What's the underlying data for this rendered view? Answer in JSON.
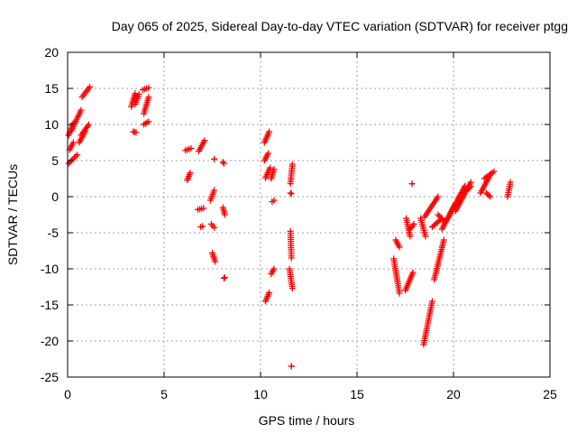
{
  "chart_data": {
    "type": "scatter",
    "title": "Day 065 of 2025, Sidereal Day-to-day VTEC variation (SDTVAR) for receiver ptgg",
    "xlabel": "GPS time / hours",
    "ylabel": "SDTVAR / TECUs",
    "xlim": [
      0,
      25
    ],
    "ylim": [
      -25,
      20
    ],
    "x_ticks": [
      "0",
      "5",
      "10",
      "15",
      "20",
      "25"
    ],
    "y_ticks": [
      "-25",
      "-20",
      "-15",
      "-10",
      "-5",
      "0",
      "5",
      "10",
      "15",
      "20"
    ],
    "grid": true,
    "marker": "plus",
    "color": "#ff0000",
    "segments": [
      [
        0.05,
        4.6,
        0.5,
        5.8
      ],
      [
        0.1,
        6.5,
        0.3,
        7.5
      ],
      [
        0.05,
        8.5,
        0.3,
        10.2
      ],
      [
        0.2,
        9.2,
        0.7,
        12.0
      ],
      [
        0.6,
        7.5,
        0.9,
        9.0
      ],
      [
        0.7,
        8.5,
        1.1,
        10.0
      ],
      [
        0.75,
        13.8,
        1.15,
        15.2
      ],
      [
        3.3,
        12.5,
        3.5,
        14.3
      ],
      [
        3.5,
        12.8,
        3.7,
        14.2
      ],
      [
        3.4,
        9.0,
        3.55,
        8.9
      ],
      [
        3.95,
        11.5,
        4.2,
        13.8
      ],
      [
        3.9,
        14.8,
        4.2,
        15.1
      ],
      [
        3.95,
        10.0,
        4.2,
        10.4
      ],
      [
        6.1,
        6.4,
        6.4,
        6.7
      ],
      [
        6.2,
        2.3,
        6.35,
        3.3
      ],
      [
        6.8,
        6.3,
        7.1,
        7.8
      ],
      [
        6.75,
        -1.8,
        7.05,
        -1.6
      ],
      [
        6.9,
        -4.2,
        7.0,
        -4.1
      ],
      [
        7.4,
        -0.5,
        7.6,
        0.9
      ],
      [
        7.45,
        -3.8,
        7.6,
        -4.3
      ],
      [
        7.5,
        -7.8,
        7.65,
        -9.0
      ],
      [
        7.6,
        5.2,
        7.6,
        5.2
      ],
      [
        8.05,
        -1.5,
        8.15,
        -2.5
      ],
      [
        8.05,
        4.8,
        8.1,
        4.6
      ],
      [
        8.1,
        -11.3,
        8.15,
        -11.2
      ],
      [
        10.2,
        7.5,
        10.45,
        9.0
      ],
      [
        10.2,
        5.0,
        10.4,
        6.0
      ],
      [
        10.25,
        2.6,
        10.5,
        4.0
      ],
      [
        10.55,
        2.5,
        10.7,
        3.8
      ],
      [
        10.25,
        -14.5,
        10.45,
        -13.3
      ],
      [
        10.55,
        -10.7,
        10.7,
        -10.0
      ],
      [
        10.6,
        -0.7,
        10.7,
        -0.5
      ],
      [
        11.5,
        -10.0,
        11.65,
        -12.7
      ],
      [
        11.55,
        -4.8,
        11.6,
        -8.5
      ],
      [
        11.55,
        0.5,
        11.6,
        0.4
      ],
      [
        11.55,
        1.8,
        11.65,
        4.5
      ],
      [
        11.6,
        -23.5,
        11.6,
        -23.5
      ],
      [
        16.9,
        -8.6,
        17.2,
        -13.4
      ],
      [
        17.0,
        -6.0,
        17.2,
        -7.0
      ],
      [
        17.5,
        -13.0,
        17.9,
        -10.5
      ],
      [
        17.55,
        -3.0,
        17.75,
        -5.5
      ],
      [
        17.75,
        -4.5,
        17.95,
        -3.8
      ],
      [
        17.85,
        1.8,
        17.85,
        1.8
      ],
      [
        18.3,
        -3.0,
        18.55,
        -5.5
      ],
      [
        18.5,
        -2.8,
        19.2,
        0.0
      ],
      [
        18.45,
        -20.5,
        18.9,
        -14.5
      ],
      [
        18.9,
        -4.2,
        19.4,
        -3.0
      ],
      [
        19.0,
        -11.5,
        19.5,
        -6.0
      ],
      [
        19.2,
        -2.5,
        19.55,
        -3.5
      ],
      [
        19.4,
        -4.5,
        20.1,
        -1.0
      ],
      [
        19.7,
        -3.0,
        20.6,
        1.5
      ],
      [
        20.1,
        -2.0,
        20.9,
        2.0
      ],
      [
        20.4,
        0.2,
        20.9,
        1.4
      ],
      [
        21.4,
        0.5,
        21.9,
        3.0
      ],
      [
        21.6,
        2.5,
        22.1,
        3.5
      ],
      [
        21.7,
        0.5,
        21.9,
        0.0
      ],
      [
        22.8,
        0.0,
        22.95,
        2.0
      ]
    ]
  }
}
